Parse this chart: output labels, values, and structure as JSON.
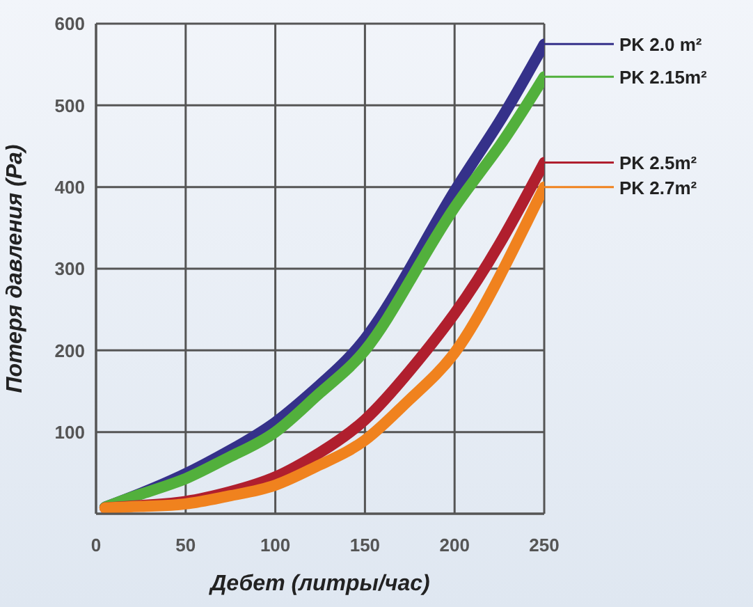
{
  "chart_data": {
    "type": "line",
    "xlabel": "Дебет (литры/час)",
    "ylabel": "Потеря давления (Pa)",
    "x": [
      5,
      25,
      50,
      75,
      100,
      125,
      150,
      175,
      200,
      225,
      250
    ],
    "xlim": [
      0,
      250
    ],
    "xticks": [
      0,
      50,
      100,
      150,
      200,
      250
    ],
    "ylim": [
      0,
      600
    ],
    "yticks": [
      {
        "value": 0,
        "label": null
      },
      100,
      200,
      300,
      400,
      500,
      600
    ],
    "grid": true,
    "legend": "right",
    "series": [
      {
        "name": "PK 2.0 m²",
        "color": "#35318a",
        "values": [
          8,
          25,
          49,
          78,
          112,
          158,
          214,
          300,
          395,
          480,
          575
        ]
      },
      {
        "name": "PK 2.15m²",
        "color": "#52b03c",
        "values": [
          8,
          24,
          43,
          70,
          100,
          148,
          200,
          285,
          375,
          450,
          535
        ]
      },
      {
        "name": "PK 2.5m²",
        "color": "#b01f2e",
        "values": [
          7,
          10,
          15,
          27,
          45,
          75,
          115,
          175,
          245,
          330,
          430
        ]
      },
      {
        "name": "PK 2.7m²",
        "color": "#f0821e",
        "values": [
          7,
          9,
          12,
          22,
          35,
          60,
          90,
          140,
          197,
          290,
          400
        ]
      }
    ]
  }
}
